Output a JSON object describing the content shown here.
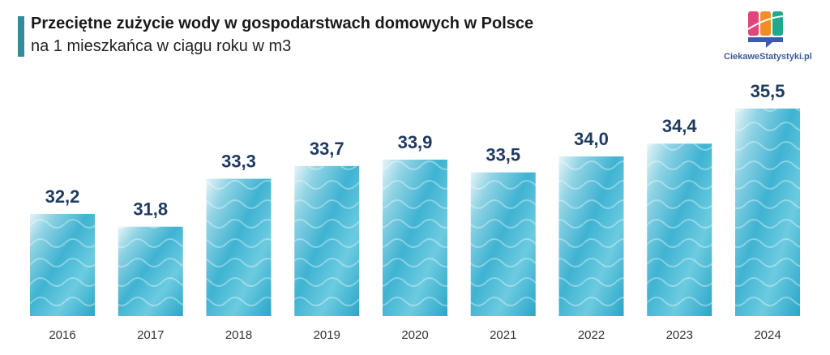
{
  "header": {
    "title": "Przeciętne zużycie wody w gospodarstwach domowych w Polsce",
    "subtitle": "na 1 mieszkańca w ciągu roku w m3"
  },
  "logo": {
    "text": "CiekaweStatystyki.pl"
  },
  "colors": {
    "accent": "#2e8e9e",
    "label": "#1f3a5f",
    "bar_fill": "#4bb8d4"
  },
  "chart_data": {
    "type": "bar",
    "title": "Przeciętne zużycie wody w gospodarstwach domowych w Polsce",
    "subtitle": "na 1 mieszkańca w ciągu roku w m3",
    "categories": [
      "2016",
      "2017",
      "2018",
      "2019",
      "2020",
      "2021",
      "2022",
      "2023",
      "2024"
    ],
    "values": [
      32.2,
      31.8,
      33.3,
      33.7,
      33.9,
      33.5,
      34.0,
      34.4,
      35.5
    ],
    "value_labels": [
      "32,2",
      "31,8",
      "33,3",
      "33,7",
      "33,9",
      "33,5",
      "34,0",
      "34,4",
      "35,5"
    ],
    "xlabel": "",
    "ylabel": "",
    "ylim": [
      29,
      36
    ],
    "grid": false,
    "legend": "none"
  }
}
